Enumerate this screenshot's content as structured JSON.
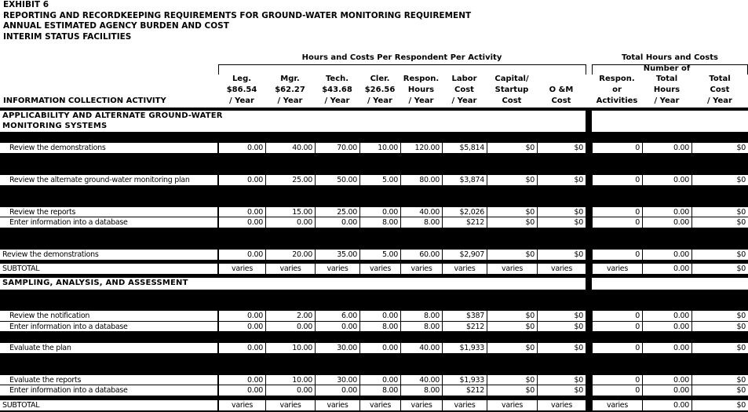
{
  "title_lines": [
    "EXHIBIT 6",
    "REPORTING AND RECORDKEEPING REQUIREMENTS FOR GROUND-WATER MONITORING REQUIREMENT",
    "ANNUAL ESTIMATED AGENCY BURDEN AND COST",
    "INTERIM STATUS FACILITIES"
  ],
  "groups": {
    "per_respondent": "Hours and Costs Per Respondent Per Activity",
    "totals": "Total Hours and Costs",
    "number_of": "Number of"
  },
  "columns": [
    "INFORMATION COLLECTION ACTIVITY",
    "Leg.\n$86.54\n/ Year",
    "Mgr.\n$62.27\n/ Year",
    "Tech.\n$43.68\n/ Year",
    "Cler.\n$26.56\n/ Year",
    "Respon.\nHours\n/ Year",
    "Labor\nCost\n/ Year",
    "Capital/\nStartup\nCost",
    "O &M\nCost",
    "Respon.\nor\nActivities",
    "Total\nHours\n/ Year",
    "Total\nCost\n/ Year"
  ],
  "rows": [
    {
      "type": "section",
      "label": "APPLICABILITY AND ALTERNATE GROUND-WATER\nMONITORING SYSTEMS"
    },
    {
      "type": "data",
      "indent": true,
      "label": "Review the demonstrations",
      "values": [
        "0.00",
        "40.00",
        "70.00",
        "10.00",
        "120.00",
        "$5,814",
        "$0",
        "$0",
        "0",
        "0.00",
        "$0"
      ]
    },
    {
      "type": "data",
      "indent": true,
      "label": "Review the alternate ground-water monitoring plan",
      "values": [
        "0.00",
        "25.00",
        "50.00",
        "5.00",
        "80.00",
        "$3,874",
        "$0",
        "$0",
        "0",
        "0.00",
        "$0"
      ]
    },
    {
      "type": "data",
      "indent": true,
      "label": "Review the reports",
      "values": [
        "0.00",
        "15.00",
        "25.00",
        "0.00",
        "40.00",
        "$2,026",
        "$0",
        "$0",
        "0",
        "0.00",
        "$0"
      ]
    },
    {
      "type": "data",
      "indent": true,
      "label": "Enter information into a database",
      "values": [
        "0.00",
        "0.00",
        "0.00",
        "8.00",
        "8.00",
        "$212",
        "$0",
        "$0",
        "0",
        "0.00",
        "$0"
      ]
    },
    {
      "type": "data",
      "indent": false,
      "label": "Review the demonstrations",
      "values": [
        "0.00",
        "20.00",
        "35.00",
        "5.00",
        "60.00",
        "$2,907",
        "$0",
        "$0",
        "0",
        "0.00",
        "$0"
      ]
    },
    {
      "type": "subtotal",
      "label": "SUBTOTAL",
      "values": [
        "varies",
        "varies",
        "varies",
        "varies",
        "varies",
        "varies",
        "varies",
        "varies",
        "varies",
        "0.00",
        "$0"
      ]
    },
    {
      "type": "section",
      "label": "SAMPLING, ANALYSIS, AND ASSESSMENT"
    },
    {
      "type": "data",
      "indent": true,
      "label": "Review the notification",
      "values": [
        "0.00",
        "2.00",
        "6.00",
        "0.00",
        "8.00",
        "$387",
        "$0",
        "$0",
        "0",
        "0.00",
        "$0"
      ]
    },
    {
      "type": "data",
      "indent": true,
      "label": "Enter information into a database",
      "values": [
        "0.00",
        "0.00",
        "0.00",
        "8.00",
        "8.00",
        "$212",
        "$0",
        "$0",
        "0",
        "0.00",
        "$0"
      ]
    },
    {
      "type": "data",
      "indent": true,
      "label": "Evaluate the plan",
      "values": [
        "0.00",
        "10.00",
        "30.00",
        "0.00",
        "40.00",
        "$1,933",
        "$0",
        "$0",
        "0",
        "0.00",
        "$0"
      ]
    },
    {
      "type": "data",
      "indent": true,
      "label": "Evaluate the reports",
      "values": [
        "0.00",
        "10.00",
        "30.00",
        "0.00",
        "40.00",
        "$1,933",
        "$0",
        "$0",
        "0",
        "0.00",
        "$0"
      ]
    },
    {
      "type": "data",
      "indent": true,
      "label": "Enter information into a database",
      "values": [
        "0.00",
        "0.00",
        "0.00",
        "8.00",
        "8.00",
        "$212",
        "$0",
        "$0",
        "0",
        "0.00",
        "$0"
      ]
    },
    {
      "type": "subtotal",
      "label": "SUBTOTAL",
      "values": [
        "varies",
        "varies",
        "varies",
        "varies",
        "varies",
        "varies",
        "varies",
        "varies",
        "varies",
        "0.00",
        "$0"
      ]
    }
  ]
}
